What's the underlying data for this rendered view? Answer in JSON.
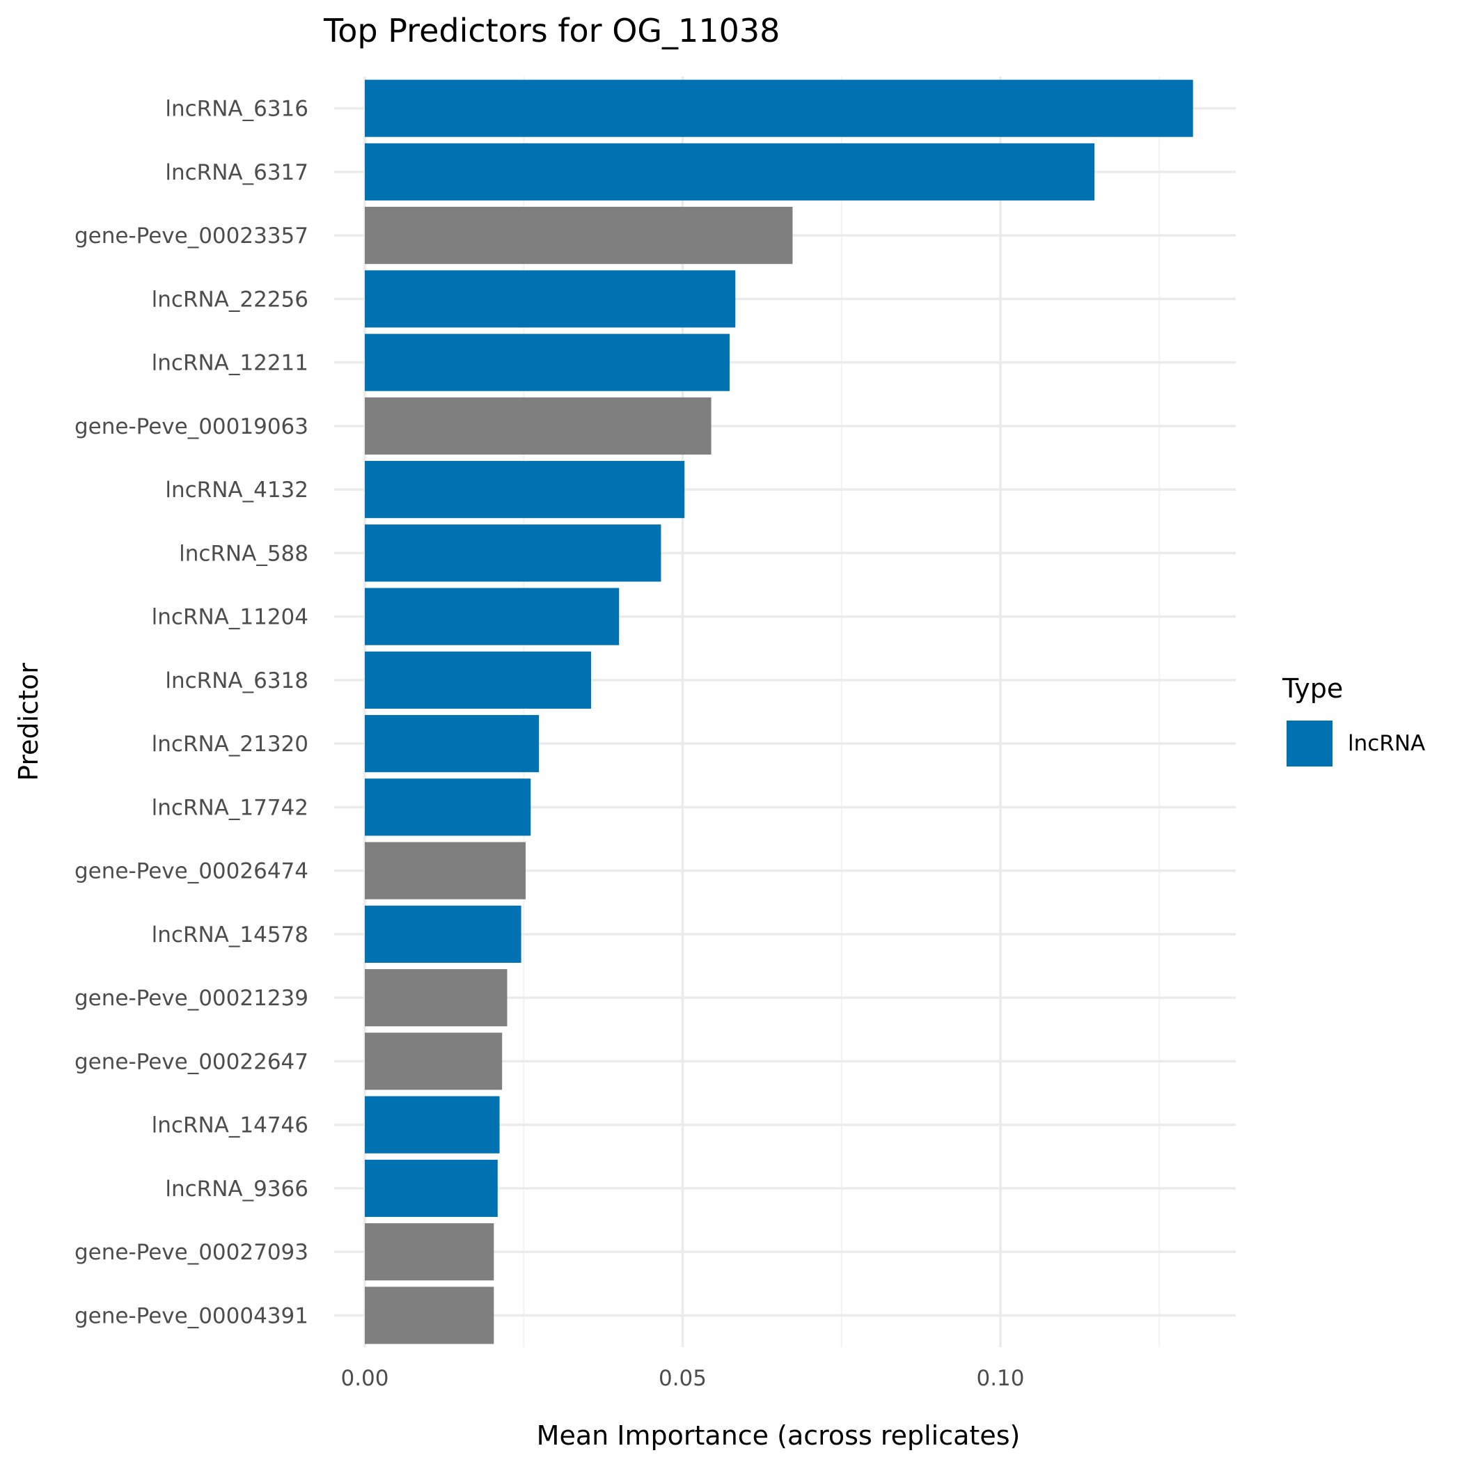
{
  "chart_data": {
    "type": "bar",
    "orientation": "horizontal",
    "title": "Top Predictors for OG_11038",
    "xlabel": "Mean Importance (across replicates)",
    "ylabel": "Predictor",
    "xlim": [
      0,
      0.137
    ],
    "xticks": [
      {
        "value": 0.0,
        "label": "0.00"
      },
      {
        "value": 0.05,
        "label": "0.05"
      },
      {
        "value": 0.1,
        "label": "0.10"
      }
    ],
    "grid": true,
    "legend": {
      "title": "Type",
      "placement": "right",
      "entries": [
        {
          "label": "lncRNA",
          "color": "#0072b2"
        }
      ]
    },
    "colors": {
      "lncRNA": "#0072b2",
      "gene": "#7f7f7f"
    },
    "categories": [
      "lncRNA_6316",
      "lncRNA_6317",
      "gene-Peve_00023357",
      "lncRNA_22256",
      "lncRNA_12211",
      "gene-Peve_00019063",
      "lncRNA_4132",
      "lncRNA_588",
      "lncRNA_11204",
      "lncRNA_6318",
      "lncRNA_21320",
      "lncRNA_17742",
      "gene-Peve_00026474",
      "lncRNA_14578",
      "gene-Peve_00021239",
      "gene-Peve_00022647",
      "lncRNA_14746",
      "lncRNA_9366",
      "gene-Peve_00027093",
      "gene-Peve_00004391"
    ],
    "values": [
      0.1303,
      0.1148,
      0.0673,
      0.0583,
      0.0574,
      0.0545,
      0.0503,
      0.0466,
      0.04,
      0.0356,
      0.0274,
      0.0261,
      0.0253,
      0.0246,
      0.0224,
      0.0216,
      0.0212,
      0.0209,
      0.0203,
      0.0203
    ],
    "types": [
      "lncRNA",
      "lncRNA",
      "gene",
      "lncRNA",
      "lncRNA",
      "gene",
      "lncRNA",
      "lncRNA",
      "lncRNA",
      "lncRNA",
      "lncRNA",
      "lncRNA",
      "gene",
      "lncRNA",
      "gene",
      "gene",
      "lncRNA",
      "lncRNA",
      "gene",
      "gene"
    ]
  }
}
